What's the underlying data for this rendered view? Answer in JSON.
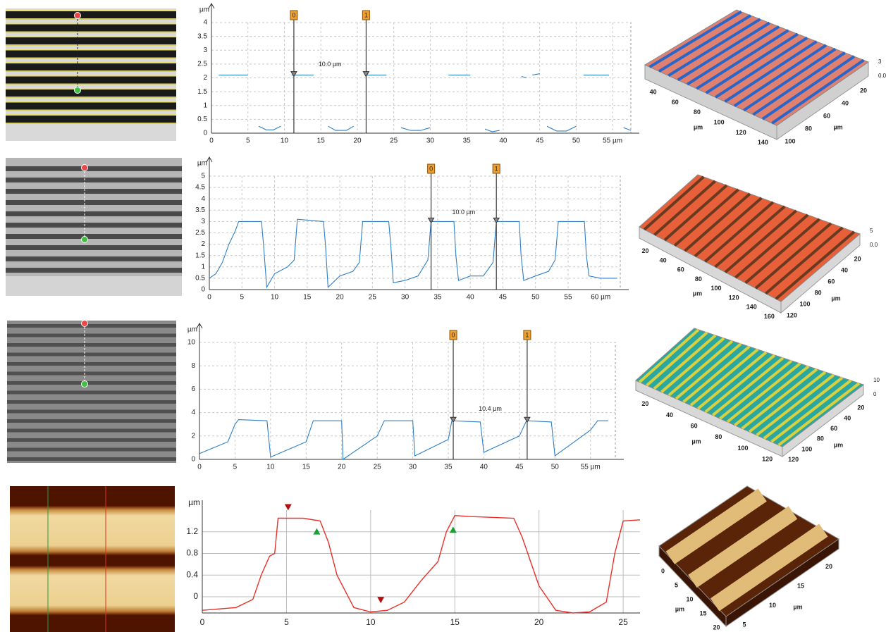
{
  "chart_data": [
    {
      "type": "line",
      "y_label": "µm",
      "color": "#2f7fc4",
      "grid": "dashed",
      "x": [
        1,
        5,
        5.7,
        6.5,
        7.5,
        8.5,
        9.5,
        10.2,
        11,
        14,
        15,
        16,
        17,
        18.5,
        19.5,
        20.2,
        21,
        24,
        25,
        26,
        27.3,
        28.7,
        30,
        31,
        32.5,
        35.5,
        36.5,
        37.5,
        38.5,
        39.5,
        41,
        42.5,
        43.2,
        43.6,
        44,
        45,
        45.5,
        46,
        47.3,
        48.7,
        50,
        50.5,
        51,
        54.5,
        55.5,
        56.5,
        57.5
      ],
      "values": [
        2.1,
        2.1,
        null,
        0.25,
        0.12,
        0.12,
        0.25,
        null,
        2.1,
        2.1,
        null,
        0.25,
        0.1,
        0.1,
        0.25,
        null,
        2.1,
        2.1,
        null,
        0.2,
        0.1,
        0.1,
        0.2,
        null,
        2.1,
        2.1,
        null,
        0.15,
        0.05,
        0.1,
        null,
        2.05,
        2.0,
        null,
        2.1,
        2.15,
        null,
        0.25,
        0.08,
        0.08,
        0.25,
        null,
        2.1,
        2.1,
        null,
        0.2,
        0.1
      ],
      "xlim": [
        0,
        57.5
      ],
      "xticks": [
        0,
        5,
        10,
        15,
        20,
        25,
        30,
        35,
        40,
        45,
        50,
        {
          "value": 55,
          "label": "55 µm"
        }
      ],
      "ylim": [
        0,
        4
      ],
      "yticks": [
        0,
        0.5,
        1,
        1.5,
        2,
        2.5,
        3,
        3.5,
        4
      ],
      "cursors": [
        {
          "x": 11.3,
          "label": "0"
        },
        {
          "x": 21.2,
          "label": "1"
        }
      ],
      "annotation": "10.0 µm"
    },
    {
      "type": "line",
      "y_label": "µm",
      "color": "#2f7fc4",
      "grid": "dashed",
      "x": [
        0,
        1,
        2,
        3,
        4,
        4.5,
        5,
        8,
        8.3,
        8.8,
        10,
        12,
        13,
        13.5,
        17.5,
        17.8,
        18.2,
        20,
        22,
        23,
        23.5,
        27.5,
        27.8,
        28.2,
        30,
        32,
        33.5,
        34,
        37.5,
        37.8,
        38.2,
        40,
        42,
        43.5,
        44,
        47.5,
        47.8,
        48.2,
        50,
        52,
        53,
        53.5,
        57.5,
        57.8,
        58.2,
        60,
        62.5
      ],
      "values": [
        0.5,
        0.7,
        1.2,
        2.0,
        2.6,
        3.0,
        3.0,
        3.0,
        2.0,
        0.1,
        0.7,
        1.0,
        1.3,
        3.1,
        3.0,
        2.0,
        0.1,
        0.6,
        0.8,
        1.2,
        3.0,
        3.0,
        2.0,
        0.3,
        0.4,
        0.6,
        1.3,
        3.0,
        3.0,
        1.5,
        0.4,
        0.6,
        0.6,
        1.2,
        3.0,
        3.0,
        1.5,
        0.4,
        0.6,
        0.8,
        1.3,
        3.0,
        3.0,
        1.5,
        0.6,
        0.5,
        0.5
      ],
      "xlim": [
        0,
        63
      ],
      "xticks": [
        0,
        5,
        10,
        15,
        20,
        25,
        30,
        35,
        40,
        45,
        50,
        55,
        {
          "value": 60,
          "label": "60 µm"
        }
      ],
      "ylim": [
        0,
        5
      ],
      "yticks": [
        0,
        0.5,
        1,
        1.5,
        2,
        2.5,
        3,
        3.5,
        4,
        4.5,
        5
      ],
      "cursors": [
        {
          "x": 34,
          "label": "0"
        },
        {
          "x": 44,
          "label": "1"
        }
      ],
      "annotation": "10.0 µm"
    },
    {
      "type": "line",
      "y_label": "µm",
      "color": "#2f7fc4",
      "grid": "dashed",
      "x": [
        0,
        4,
        5,
        5.5,
        9.5,
        10,
        15,
        16,
        20,
        20.2,
        25,
        26,
        30,
        30.3,
        35,
        35.5,
        39.5,
        40,
        45,
        46,
        49.5,
        50,
        55,
        56,
        57.5
      ],
      "values": [
        0.5,
        1.5,
        3.0,
        3.4,
        3.3,
        0.2,
        1.5,
        3.3,
        3.3,
        0,
        2.0,
        3.3,
        3.3,
        0.3,
        1.7,
        3.3,
        3.2,
        0.6,
        2.0,
        3.3,
        3.2,
        0.3,
        2.5,
        3.3,
        3.3
      ],
      "xlim": [
        0,
        58.5
      ],
      "xticks": [
        0,
        5,
        10,
        15,
        20,
        25,
        30,
        35,
        40,
        45,
        50,
        {
          "value": 55,
          "label": "55 µm"
        }
      ],
      "ylim": [
        0,
        10
      ],
      "yticks": [
        0,
        2,
        4,
        6,
        8,
        10
      ],
      "cursors": [
        {
          "x": 35.7,
          "label": "0"
        },
        {
          "x": 46.1,
          "label": "1"
        }
      ],
      "annotation": "10.4 µm"
    },
    {
      "type": "line",
      "y_label": "µm",
      "color": "#e8302a",
      "grid": "solid",
      "x": [
        0,
        2,
        3,
        3.5,
        4,
        4.3,
        4.5,
        6,
        7,
        7.5,
        8,
        9,
        10,
        11,
        12,
        13,
        14,
        14.5,
        15,
        16,
        18.5,
        19,
        20,
        21,
        22,
        23,
        24,
        24.5,
        25,
        26
      ],
      "values": [
        -0.25,
        -0.2,
        -0.05,
        0.4,
        0.75,
        0.8,
        1.45,
        1.45,
        1.4,
        1.0,
        0.4,
        -0.2,
        -0.28,
        -0.25,
        -0.1,
        0.3,
        0.65,
        1.2,
        1.5,
        1.48,
        1.45,
        1.1,
        0.2,
        -0.25,
        -0.3,
        -0.28,
        -0.1,
        0.8,
        1.4,
        1.42
      ],
      "xlim": [
        0,
        26
      ],
      "xticks": [
        0,
        5,
        10,
        15,
        20,
        25
      ],
      "ylim": [
        -0.3,
        1.6
      ],
      "yticks": [
        0,
        0.4,
        0.8,
        1.2
      ],
      "markers": [
        {
          "x": 5.1,
          "shape": "down",
          "color": "#b01010"
        },
        {
          "x": 6.8,
          "shape": "up",
          "color": "#18a030"
        },
        {
          "x": 10.6,
          "shape": "down",
          "color": "#b01010"
        },
        {
          "x": 14.9,
          "shape": "up",
          "color": "#18a030"
        }
      ]
    }
  ],
  "views": [
    {
      "unit": "µm",
      "x_ticks": [
        "40",
        "60",
        "80",
        "100",
        "120",
        "140"
      ],
      "y_ticks": [
        "100",
        "80",
        "60",
        "40",
        "20"
      ],
      "z_ticks": [
        "0.0",
        "3"
      ]
    },
    {
      "unit": "µm",
      "x_ticks": [
        "20",
        "40",
        "60",
        "80",
        "100",
        "120",
        "140",
        "160"
      ],
      "y_ticks": [
        "120",
        "100",
        "80",
        "60",
        "40",
        "20"
      ],
      "z_ticks": [
        "0.0",
        "5"
      ]
    },
    {
      "unit": "µm",
      "x_ticks": [
        "20",
        "40",
        "60",
        "80",
        "100",
        "120"
      ],
      "y_ticks": [
        "120",
        "100",
        "80",
        "60",
        "40",
        "20"
      ],
      "z_ticks": [
        "0",
        "10"
      ]
    },
    {
      "unit": "µm",
      "x_ticks": [
        "0",
        "5",
        "10",
        "15",
        "20"
      ],
      "y_ticks": [
        "5",
        "10",
        "15",
        "20"
      ]
    }
  ]
}
